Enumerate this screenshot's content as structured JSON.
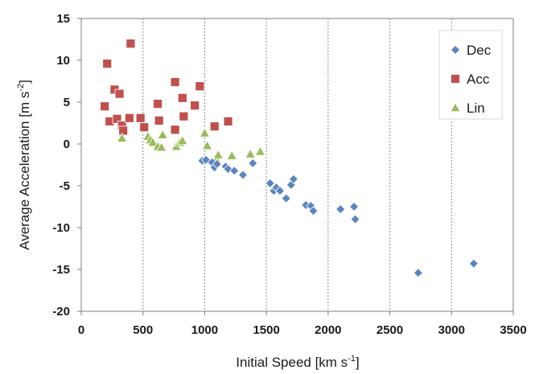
{
  "chart_data": {
    "type": "scatter",
    "title": "",
    "xlabel": "Initial Speed [km s",
    "xlabel_sup": "-1",
    "xlabel_end": "]",
    "ylabel": "Average Acceleration [m s",
    "ylabel_sup": "-2",
    "ylabel_end": "]",
    "xlim": [
      0,
      3500
    ],
    "ylim": [
      -20,
      15
    ],
    "xticks": [
      0,
      500,
      1000,
      1500,
      2000,
      2500,
      3000,
      3500
    ],
    "yticks": [
      -20,
      -15,
      -10,
      -5,
      0,
      5,
      10,
      15
    ],
    "grid": "vertical-dashed",
    "legend_position": "top-right",
    "series": [
      {
        "name": "Dec",
        "marker": "diamond",
        "color": "#5b85bf",
        "points": [
          [
            980,
            -2.0
          ],
          [
            1010,
            -1.9
          ],
          [
            1060,
            -2.2
          ],
          [
            1080,
            -2.8
          ],
          [
            1100,
            -2.4
          ],
          [
            1170,
            -2.7
          ],
          [
            1190,
            -3.0
          ],
          [
            1240,
            -3.2
          ],
          [
            1310,
            -3.7
          ],
          [
            1390,
            -2.3
          ],
          [
            1530,
            -4.7
          ],
          [
            1560,
            -5.6
          ],
          [
            1580,
            -5.2
          ],
          [
            1610,
            -5.6
          ],
          [
            1660,
            -6.5
          ],
          [
            1700,
            -4.9
          ],
          [
            1720,
            -4.2
          ],
          [
            1820,
            -7.3
          ],
          [
            1860,
            -7.4
          ],
          [
            1880,
            -8.0
          ],
          [
            2100,
            -7.8
          ],
          [
            2210,
            -7.5
          ],
          [
            2220,
            -9.0
          ],
          [
            2730,
            -15.4
          ],
          [
            3180,
            -14.3
          ]
        ]
      },
      {
        "name": "Acc",
        "marker": "square",
        "color": "#c0504d",
        "points": [
          [
            190,
            4.5
          ],
          [
            210,
            9.6
          ],
          [
            230,
            2.7
          ],
          [
            270,
            6.5
          ],
          [
            290,
            3.0
          ],
          [
            310,
            6.0
          ],
          [
            330,
            2.2
          ],
          [
            340,
            1.6
          ],
          [
            390,
            3.1
          ],
          [
            400,
            12.0
          ],
          [
            480,
            3.1
          ],
          [
            510,
            2.0
          ],
          [
            620,
            4.8
          ],
          [
            630,
            2.8
          ],
          [
            760,
            7.4
          ],
          [
            760,
            1.7
          ],
          [
            820,
            5.5
          ],
          [
            830,
            3.3
          ],
          [
            920,
            4.6
          ],
          [
            960,
            6.9
          ],
          [
            1080,
            2.1
          ],
          [
            1190,
            2.7
          ]
        ]
      },
      {
        "name": "Lin",
        "marker": "triangle",
        "color": "#9bbb59",
        "points": [
          [
            330,
            0.7
          ],
          [
            540,
            0.9
          ],
          [
            560,
            0.5
          ],
          [
            580,
            0.2
          ],
          [
            620,
            -0.3
          ],
          [
            650,
            -0.4
          ],
          [
            660,
            1.1
          ],
          [
            770,
            -0.3
          ],
          [
            800,
            0.2
          ],
          [
            820,
            0.4
          ],
          [
            1000,
            1.3
          ],
          [
            1020,
            -0.2
          ],
          [
            1090,
            -1.7
          ],
          [
            1110,
            -1.3
          ],
          [
            1220,
            -1.4
          ],
          [
            1370,
            -1.2
          ],
          [
            1450,
            -0.9
          ]
        ]
      }
    ]
  }
}
